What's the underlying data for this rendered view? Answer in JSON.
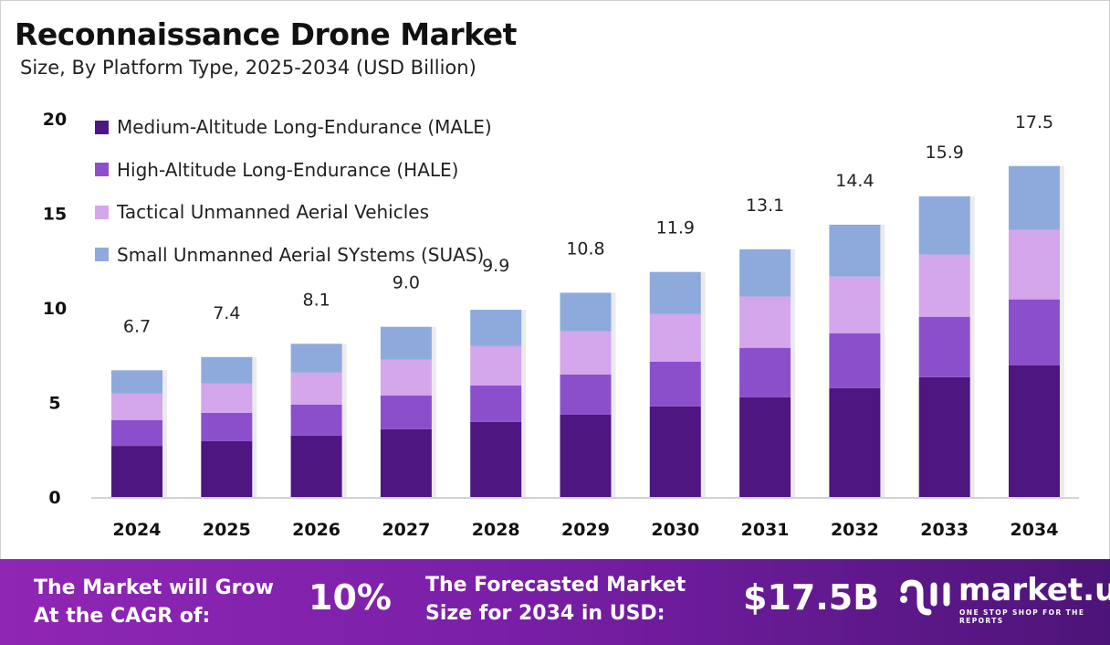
{
  "chart_data": {
    "type": "bar",
    "stacked": true,
    "title": "Reconnaissance Drone Market",
    "subtitle": "Size, By Platform Type, 2025-2034 (USD Billion)",
    "categories": [
      "2024",
      "2025",
      "2026",
      "2027",
      "2028",
      "2029",
      "2030",
      "2031",
      "2032",
      "2033",
      "2034"
    ],
    "series": [
      {
        "name": "Medium-Altitude Long-Endurance (MALE)",
        "color": "#4e1680",
        "values": [
          2.7,
          2.95,
          3.24,
          3.58,
          3.97,
          4.35,
          4.79,
          5.27,
          5.76,
          6.34,
          6.97
        ]
      },
      {
        "name": "High-Altitude Long-Endurance (HALE)",
        "color": "#8c4fcc",
        "values": [
          1.36,
          1.5,
          1.65,
          1.79,
          1.93,
          2.13,
          2.37,
          2.62,
          2.9,
          3.19,
          3.48
        ]
      },
      {
        "name": "Tactical Unmanned Aerial Vehicles",
        "color": "#d4a6ec",
        "values": [
          1.41,
          1.55,
          1.69,
          1.89,
          2.08,
          2.28,
          2.52,
          2.71,
          3.0,
          3.29,
          3.68
        ]
      },
      {
        "name": "Small Unmanned Aerial SYstems (SUAS)",
        "color": "#8eaadc",
        "values": [
          1.23,
          1.4,
          1.52,
          1.74,
          1.92,
          2.04,
          2.22,
          2.5,
          2.74,
          3.08,
          3.37
        ]
      }
    ],
    "totals": [
      "6.7",
      "7.4",
      "8.1",
      "9.0",
      "9.9",
      "10.8",
      "11.9",
      "13.1",
      "14.4",
      "15.9",
      "17.5"
    ],
    "yticks": [
      0,
      5,
      10,
      15,
      20
    ],
    "ylim": [
      0,
      20
    ],
    "grid": false,
    "legend": "top-left"
  },
  "footer": {
    "cagr_label_1": "The Market will Grow",
    "cagr_label_2": "At the CAGR of:",
    "cagr_value": "10%",
    "forecast_label_1": "The Forecasted Market",
    "forecast_label_2": "Size for 2034 in USD:",
    "forecast_value": "$17.5B",
    "logo_name": "market.us",
    "logo_tagline": "ONE STOP SHOP FOR THE REPORTS"
  }
}
